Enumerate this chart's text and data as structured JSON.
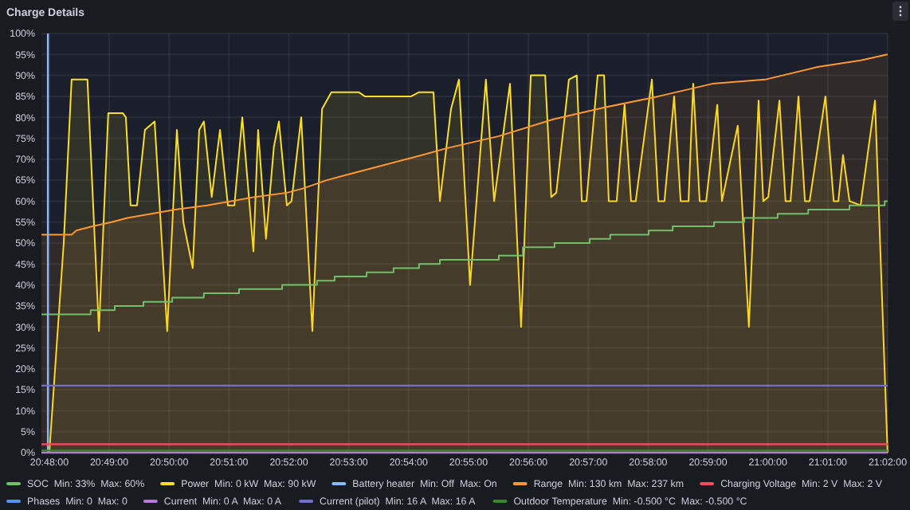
{
  "chart_data": {
    "type": "line",
    "title": "Charge Details",
    "legend": "bottom",
    "grid": true,
    "xlim": [
      20.7978,
      21.033333
    ],
    "xticks": [
      {
        "value": 20.8,
        "label": "20:48:00"
      },
      {
        "value": 20.816667,
        "label": "20:49:00"
      },
      {
        "value": 20.833333,
        "label": "20:50:00"
      },
      {
        "value": 20.85,
        "label": "20:51:00"
      },
      {
        "value": 20.866667,
        "label": "20:52:00"
      },
      {
        "value": 20.883333,
        "label": "20:53:00"
      },
      {
        "value": 20.9,
        "label": "20:54:00"
      },
      {
        "value": 20.916667,
        "label": "20:55:00"
      },
      {
        "value": 20.933333,
        "label": "20:56:00"
      },
      {
        "value": 20.95,
        "label": "20:57:00"
      },
      {
        "value": 20.966667,
        "label": "20:58:00"
      },
      {
        "value": 20.983333,
        "label": "20:59:00"
      },
      {
        "value": 21.0,
        "label": "21:00:00"
      },
      {
        "value": 21.016667,
        "label": "21:01:00"
      },
      {
        "value": 21.033333,
        "label": "21:02:00"
      }
    ],
    "ylim": [
      0,
      100
    ],
    "yticks": [
      {
        "value": 0,
        "label": "0%"
      },
      {
        "value": 5,
        "label": "5%"
      },
      {
        "value": 10,
        "label": "10%"
      },
      {
        "value": 15,
        "label": "15%"
      },
      {
        "value": 20,
        "label": "20%"
      },
      {
        "value": 25,
        "label": "25%"
      },
      {
        "value": 30,
        "label": "30%"
      },
      {
        "value": 35,
        "label": "35%"
      },
      {
        "value": 40,
        "label": "40%"
      },
      {
        "value": 45,
        "label": "45%"
      },
      {
        "value": 50,
        "label": "50%"
      },
      {
        "value": 55,
        "label": "55%"
      },
      {
        "value": 60,
        "label": "60%"
      },
      {
        "value": 65,
        "label": "65%"
      },
      {
        "value": 70,
        "label": "70%"
      },
      {
        "value": 75,
        "label": "75%"
      },
      {
        "value": 80,
        "label": "80%"
      },
      {
        "value": 85,
        "label": "85%"
      },
      {
        "value": 90,
        "label": "90%"
      },
      {
        "value": 95,
        "label": "95%"
      },
      {
        "value": 100,
        "label": "100%"
      }
    ],
    "series": [
      {
        "name": "SOC  Min: 33%  Max: 60%",
        "color": "#73bf69",
        "type": "step",
        "x": [
          20.7978,
          20.8115,
          20.8182,
          20.8262,
          20.8342,
          20.843,
          20.8528,
          20.8648,
          20.8745,
          20.8794,
          20.8883,
          20.8958,
          20.9029,
          20.9087,
          20.9251,
          20.9318,
          20.9406,
          20.9504,
          20.9561,
          20.9668,
          20.9735,
          20.985,
          20.9934,
          21.0027,
          21.0112,
          21.0227,
          21.0325,
          21.0333
        ],
        "values": [
          33,
          34,
          35,
          36,
          37,
          38,
          39,
          40,
          41,
          42,
          43,
          44,
          45,
          46,
          47,
          49,
          50,
          51,
          52,
          53,
          54,
          55,
          56,
          57,
          58,
          59,
          60,
          60
        ]
      },
      {
        "name": "Power  Min: 0 kW  Max: 90 kW",
        "color": "#fade2a",
        "type": "area",
        "x": [
          20.8,
          20.804,
          20.8062,
          20.8106,
          20.8138,
          20.8164,
          20.8204,
          20.8213,
          20.8226,
          20.8244,
          20.8266,
          20.8293,
          20.8328,
          20.8355,
          20.8373,
          20.8399,
          20.8417,
          20.843,
          20.8452,
          20.8475,
          20.8497,
          20.8515,
          20.8537,
          20.8568,
          20.8581,
          20.8603,
          20.8625,
          20.8639,
          20.8661,
          20.8674,
          20.8701,
          20.8732,
          20.8759,
          20.8785,
          20.8861,
          20.8878,
          20.9007,
          20.9029,
          20.9069,
          20.9087,
          20.9118,
          20.914,
          20.9171,
          20.9215,
          20.9238,
          20.9282,
          20.9313,
          20.934,
          20.938,
          20.9397,
          20.9411,
          20.9446,
          20.9468,
          20.9482,
          20.9495,
          20.9526,
          20.9544,
          20.9557,
          20.9579,
          20.9601,
          20.9619,
          20.9632,
          20.9677,
          20.9695,
          20.9712,
          20.9739,
          20.9757,
          20.9779,
          20.9792,
          20.981,
          20.9828,
          20.9859,
          20.9872,
          20.9916,
          20.9947,
          20.9974,
          20.9987,
          21.0001,
          21.0032,
          21.0049,
          21.0063,
          21.0085,
          21.0103,
          21.0116,
          21.016,
          21.0183,
          21.0196,
          21.0209,
          21.0227,
          21.0258,
          21.0298,
          21.0333
        ],
        "values": [
          0,
          50,
          89,
          89,
          29,
          81,
          81,
          80,
          59,
          59,
          77,
          79,
          29,
          77,
          55,
          44,
          77,
          79,
          61,
          77,
          59,
          59,
          80,
          48,
          77,
          51,
          73,
          79,
          59,
          60,
          80,
          29,
          82,
          86,
          86,
          85,
          85,
          86,
          86,
          60,
          82,
          89,
          40,
          89,
          60,
          88,
          30,
          90,
          90,
          61,
          62,
          89,
          90,
          60,
          60,
          90,
          90,
          60,
          60,
          83,
          60,
          60,
          89,
          60,
          60,
          85,
          60,
          60,
          88,
          60,
          60,
          83,
          60,
          78,
          30,
          84,
          60,
          61,
          84,
          60,
          60,
          85,
          60,
          60,
          85,
          60,
          60,
          71,
          60,
          59,
          84,
          0
        ]
      },
      {
        "name": "Battery heater  Min: Off  Max: On",
        "color": "#8ab8ff",
        "x": [
          20.7996,
          20.7996
        ],
        "values": [
          100,
          0
        ]
      },
      {
        "name": "Range  Min: 130 km  Max: 237 km",
        "color": "#ff9830",
        "type": "area",
        "x": [
          20.7978,
          20.8062,
          20.8075,
          20.812,
          20.8173,
          20.8217,
          20.8284,
          20.835,
          20.8439,
          20.8506,
          20.8572,
          20.8661,
          20.8705,
          20.8772,
          20.8816,
          20.8905,
          20.8994,
          20.9038,
          20.9105,
          20.9251,
          20.9402,
          20.9548,
          20.9695,
          20.9845,
          20.9992,
          21.0138,
          21.0258,
          21.0333
        ],
        "values": [
          52,
          52,
          53,
          54,
          55,
          56,
          57,
          58,
          59,
          60,
          61,
          62,
          63,
          65,
          66,
          68,
          70,
          71,
          72.6,
          75.5,
          79.5,
          82.4,
          85,
          88,
          89,
          92,
          93.6,
          95
        ]
      },
      {
        "name": "Charging Voltage  Min: 2 V  Max: 2 V",
        "color": "#f2495c",
        "x": [
          20.7978,
          21.0333
        ],
        "values": [
          2,
          2
        ]
      },
      {
        "name": "Phases  Min: 0  Max: 0",
        "color": "#5794f2",
        "values": [
          null,
          null
        ]
      },
      {
        "name": "Current  Min: 0 A  Max: 0 A",
        "color": "#b877d9",
        "x": [
          20.7978,
          21.0333
        ],
        "values": [
          0,
          0
        ]
      },
      {
        "name": "Current (pilot)  Min: 16 A  Max: 16 A",
        "color": "#7070c8",
        "x": [
          20.7978,
          21.0333
        ],
        "values": [
          16,
          16
        ]
      },
      {
        "name": "Outdoor Temperature  Min: -0.500 °C  Max: -0.500 °C",
        "color": "#37872d",
        "x": [
          20.7978,
          21.0333
        ],
        "values": [
          0.5,
          0.5
        ]
      }
    ]
  }
}
